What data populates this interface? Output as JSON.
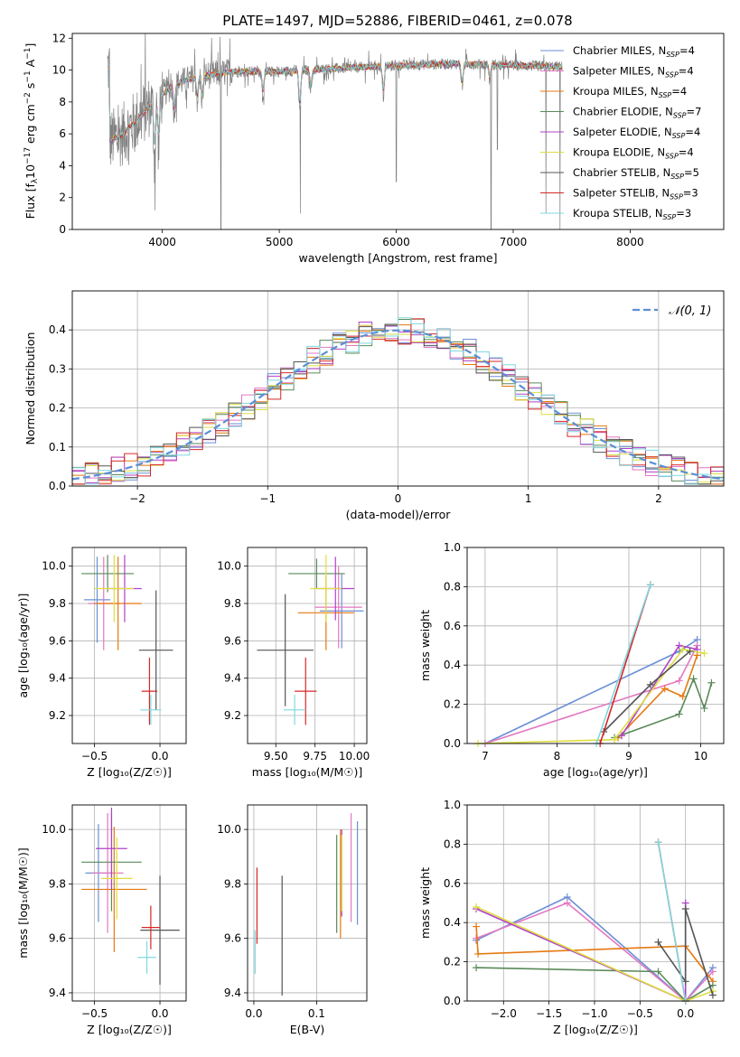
{
  "figure": {
    "title": "PLATE=1497, MJD=52886, FIBERID=0461, z=0.078"
  },
  "models": [
    {
      "name": "Chabrier MILES",
      "nssp": 4,
      "color": "#6b8fd6"
    },
    {
      "name": "Salpeter MILES",
      "nssp": 4,
      "color": "#e377c2"
    },
    {
      "name": "Kroupa MILES",
      "nssp": 4,
      "color": "#e6780f"
    },
    {
      "name": "Chabrier ELODIE",
      "nssp": 7,
      "color": "#5a8a5a"
    },
    {
      "name": "Salpeter ELODIE",
      "nssp": 4,
      "color": "#b042c8"
    },
    {
      "name": "Kroupa ELODIE",
      "nssp": 4,
      "color": "#dede40"
    },
    {
      "name": "Chabrier STELIB",
      "nssp": 5,
      "color": "#555555"
    },
    {
      "name": "Salpeter STELIB",
      "nssp": 3,
      "color": "#d62728"
    },
    {
      "name": "Kroupa STELIB",
      "nssp": 3,
      "color": "#7fd8e0"
    }
  ],
  "chart_data": [
    {
      "id": "spectrum",
      "type": "line",
      "xlabel": "wavelength [Angstrom, rest frame]",
      "ylabel_parts": [
        "Flux [f",
        "λ",
        "10",
        "−17",
        " erg cm",
        "−2",
        " s",
        "−1",
        " A",
        "−1",
        "]"
      ],
      "xlim": [
        3230,
        8800
      ],
      "ylim": [
        0,
        12.3
      ],
      "xticks": [
        4000,
        5000,
        6000,
        7000,
        8000
      ],
      "yticks": [
        0,
        2,
        4,
        6,
        8,
        10,
        12
      ],
      "data_color": "#808080",
      "continuum": [
        [
          3550,
          5.6
        ],
        [
          3650,
          5.9
        ],
        [
          3800,
          7.0
        ],
        [
          3950,
          8.2
        ],
        [
          4100,
          9.1
        ],
        [
          4300,
          9.6
        ],
        [
          4600,
          9.9
        ],
        [
          5000,
          9.9
        ],
        [
          5500,
          10.1
        ],
        [
          6000,
          10.3
        ],
        [
          6500,
          10.4
        ],
        [
          7000,
          10.3
        ],
        [
          7420,
          10.2
        ]
      ],
      "absorption_lines": [
        [
          3934,
          3.5
        ],
        [
          3969,
          3.0
        ],
        [
          4102,
          1.8
        ],
        [
          4300,
          1.5
        ],
        [
          4341,
          1.5
        ],
        [
          4861,
          1.5
        ],
        [
          5175,
          2.5
        ],
        [
          5270,
          1.2
        ],
        [
          5890,
          2.0
        ],
        [
          6563,
          1.5
        ],
        [
          6800,
          1.0
        ]
      ],
      "deep_dips": [
        [
          4500,
          0.0
        ],
        [
          5180,
          1.0
        ],
        [
          6000,
          3.0
        ],
        [
          6810,
          0.0
        ],
        [
          6865,
          5.0
        ],
        [
          7280,
          1.0
        ],
        [
          7400,
          0.0
        ]
      ]
    },
    {
      "id": "residual-histogram",
      "type": "bar",
      "xlabel": "(data-model)/error",
      "ylabel": "Normed distribution",
      "xlim": [
        -2.5,
        2.5
      ],
      "ylim": [
        0,
        0.5
      ],
      "xticks": [
        -2,
        -1,
        0,
        1,
        2
      ],
      "xtick_labels": [
        "−2",
        "−1",
        "0",
        "1",
        "2"
      ],
      "yticks": [
        0.0,
        0.1,
        0.2,
        0.3,
        0.4
      ],
      "ytick_labels": [
        "0.0",
        "0.1",
        "0.2",
        "0.3",
        "0.4"
      ],
      "bin_edges": [
        -2.5,
        2.5,
        50
      ],
      "legend": "𝒩(0, 1)",
      "legend_position": "top-right",
      "reference_curve": {
        "type": "normal",
        "mean": 0,
        "sigma": 1,
        "color": "#5b8fd6"
      }
    },
    {
      "id": "age-vs-metallicity",
      "type": "scatter",
      "xlabel": "Z [log₁₀(Z/Z☉)]",
      "ylabel": "age  [log₁₀(age/yr)]",
      "xlim": [
        -0.67,
        0.2
      ],
      "ylim": [
        9.05,
        10.1
      ],
      "xticks": [
        -0.5,
        0.0
      ],
      "xtick_labels": [
        "−0.5",
        "0.0"
      ],
      "yticks": [
        9.2,
        9.4,
        9.6,
        9.8,
        10.0
      ],
      "ytick_labels": [
        "9.2",
        "9.4",
        "9.6",
        "9.8",
        "10.0"
      ],
      "points": [
        {
          "x": -0.48,
          "xerr": 0.1,
          "y": 9.82,
          "yerr": 0.23,
          "m": 0
        },
        {
          "x": -0.43,
          "xerr": 0.12,
          "y": 9.8,
          "yerr": 0.25,
          "m": 1
        },
        {
          "x": -0.32,
          "xerr": 0.18,
          "y": 9.8,
          "yerr": 0.25,
          "m": 2
        },
        {
          "x": -0.4,
          "xerr": 0.2,
          "y": 9.96,
          "yerr": 0.1,
          "m": 3
        },
        {
          "x": -0.27,
          "xerr": 0.13,
          "y": 9.88,
          "yerr": 0.18,
          "m": 4
        },
        {
          "x": -0.35,
          "xerr": 0.15,
          "y": 9.88,
          "yerr": 0.18,
          "m": 5
        },
        {
          "x": -0.03,
          "xerr": 0.13,
          "y": 9.55,
          "yerr": 0.32,
          "m": 6
        },
        {
          "x": -0.08,
          "xerr": 0.06,
          "y": 9.33,
          "yerr": 0.18,
          "m": 7
        },
        {
          "x": -0.07,
          "xerr": 0.08,
          "y": 9.23,
          "yerr": 0.08,
          "m": 8
        }
      ]
    },
    {
      "id": "age-vs-mass",
      "type": "scatter",
      "xlabel": "mass [log₁₀(M/M☉)]",
      "ylabel": "",
      "xlim": [
        9.32,
        10.08
      ],
      "ylim": [
        9.05,
        10.1
      ],
      "xticks": [
        9.5,
        9.75,
        10.0
      ],
      "xtick_labels": [
        "9.50",
        "9.75",
        "10.00"
      ],
      "yticks": [
        9.2,
        9.4,
        9.6,
        9.8,
        10.0
      ],
      "ytick_labels": [
        "9.2",
        "9.4",
        "9.6",
        "9.8",
        "10.0"
      ],
      "points": [
        {
          "x": 9.92,
          "xerr": 0.14,
          "y": 9.76,
          "yerr": 0.2,
          "m": 0
        },
        {
          "x": 9.9,
          "xerr": 0.15,
          "y": 9.78,
          "yerr": 0.22,
          "m": 1
        },
        {
          "x": 9.82,
          "xerr": 0.18,
          "y": 9.75,
          "yerr": 0.2,
          "m": 2
        },
        {
          "x": 9.76,
          "xerr": 0.18,
          "y": 9.96,
          "yerr": 0.08,
          "m": 3
        },
        {
          "x": 9.88,
          "xerr": 0.12,
          "y": 9.88,
          "yerr": 0.17,
          "m": 4
        },
        {
          "x": 9.82,
          "xerr": 0.1,
          "y": 9.88,
          "yerr": 0.18,
          "m": 5
        },
        {
          "x": 9.56,
          "xerr": 0.18,
          "y": 9.55,
          "yerr": 0.3,
          "m": 6
        },
        {
          "x": 9.69,
          "xerr": 0.07,
          "y": 9.33,
          "yerr": 0.18,
          "m": 7
        },
        {
          "x": 9.62,
          "xerr": 0.07,
          "y": 9.23,
          "yerr": 0.08,
          "m": 8
        }
      ]
    },
    {
      "id": "mass-weight-vs-age",
      "type": "line",
      "xlabel": "age  [log₁₀(age/yr)]",
      "ylabel": "mass weight",
      "xlim": [
        6.75,
        10.32
      ],
      "ylim": [
        0.0,
        1.0
      ],
      "xticks": [
        7,
        8,
        9,
        10
      ],
      "xtick_labels": [
        "7",
        "8",
        "9",
        "10"
      ],
      "yticks": [
        0.0,
        0.2,
        0.4,
        0.6,
        0.8,
        1.0
      ],
      "ytick_labels": [
        "0.0",
        "0.2",
        "0.4",
        "0.6",
        "0.8",
        "1.0"
      ],
      "series": [
        {
          "m": 0,
          "x": [
            7.0,
            9.7,
            9.95
          ],
          "y": [
            0.0,
            0.47,
            0.53
          ]
        },
        {
          "m": 1,
          "x": [
            7.0,
            9.7,
            9.95
          ],
          "y": [
            0.0,
            0.32,
            0.5
          ]
        },
        {
          "m": 2,
          "x": [
            8.85,
            9.5,
            9.75,
            9.95
          ],
          "y": [
            0.03,
            0.28,
            0.24,
            0.45
          ]
        },
        {
          "m": 3,
          "x": [
            8.8,
            9.7,
            9.9,
            10.05,
            10.15
          ],
          "y": [
            0.03,
            0.15,
            0.33,
            0.18,
            0.31
          ]
        },
        {
          "m": 4,
          "x": [
            8.9,
            9.7,
            9.95
          ],
          "y": [
            0.04,
            0.5,
            0.48
          ]
        },
        {
          "m": 5,
          "x": [
            6.9,
            8.8,
            9.75,
            10.05
          ],
          "y": [
            0.0,
            0.02,
            0.48,
            0.46
          ]
        },
        {
          "m": 6,
          "x": [
            8.65,
            9.3,
            9.85
          ],
          "y": [
            0.06,
            0.3,
            0.47
          ]
        },
        {
          "m": 7,
          "x": [
            8.6,
            9.3
          ],
          "y": [
            0.0,
            0.81
          ]
        },
        {
          "m": 8,
          "x": [
            8.55,
            9.3
          ],
          "y": [
            0.0,
            0.81
          ]
        }
      ]
    },
    {
      "id": "mass-vs-metallicity",
      "type": "scatter",
      "xlabel": "Z [log₁₀(Z/Z☉)]",
      "ylabel": "mass [log₁₀(M/M☉)]",
      "xlim": [
        -0.67,
        0.2
      ],
      "ylim": [
        9.37,
        10.09
      ],
      "xticks": [
        -0.5,
        0.0
      ],
      "xtick_labels": [
        "−0.5",
        "0.0"
      ],
      "yticks": [
        9.4,
        9.6,
        9.8,
        10.0
      ],
      "ytick_labels": [
        "9.4",
        "9.6",
        "9.8",
        "10.0"
      ],
      "points": [
        {
          "x": -0.47,
          "xerr": 0.1,
          "y": 9.84,
          "yerr": 0.18,
          "m": 0
        },
        {
          "x": -0.4,
          "xerr": 0.12,
          "y": 9.84,
          "yerr": 0.22,
          "m": 1
        },
        {
          "x": -0.35,
          "xerr": 0.25,
          "y": 9.78,
          "yerr": 0.23,
          "m": 2
        },
        {
          "x": -0.37,
          "xerr": 0.23,
          "y": 9.88,
          "yerr": 0.18,
          "m": 3
        },
        {
          "x": -0.37,
          "xerr": 0.12,
          "y": 9.93,
          "yerr": 0.15,
          "m": 4
        },
        {
          "x": -0.33,
          "xerr": 0.12,
          "y": 9.82,
          "yerr": 0.15,
          "m": 5
        },
        {
          "x": 0.0,
          "xerr": 0.15,
          "y": 9.63,
          "yerr": 0.2,
          "m": 6
        },
        {
          "x": -0.07,
          "xerr": 0.07,
          "y": 9.64,
          "yerr": 0.08,
          "m": 7
        },
        {
          "x": -0.1,
          "xerr": 0.07,
          "y": 9.53,
          "yerr": 0.06,
          "m": 8
        }
      ]
    },
    {
      "id": "mass-vs-extinction",
      "type": "scatter",
      "xlabel": "E(B-V)",
      "ylabel": "",
      "xlim": [
        -0.01,
        0.18
      ],
      "ylim": [
        9.37,
        10.09
      ],
      "xticks": [
        0.0,
        0.1
      ],
      "xtick_labels": [
        "0.0",
        "0.1"
      ],
      "yticks": [
        9.4,
        9.6,
        9.8,
        10.0
      ],
      "ytick_labels": [
        "9.4",
        "9.6",
        "9.8",
        "10.0"
      ],
      "points": [
        {
          "x": 0.165,
          "y": 9.84,
          "yerr": 0.19,
          "m": 0
        },
        {
          "x": 0.155,
          "y": 9.86,
          "yerr": 0.2,
          "m": 1
        },
        {
          "x": 0.138,
          "y": 9.8,
          "yerr": 0.2,
          "m": 2
        },
        {
          "x": 0.132,
          "y": 9.8,
          "yerr": 0.18,
          "m": 3
        },
        {
          "x": 0.14,
          "y": 9.84,
          "yerr": 0.16,
          "m": 4
        },
        {
          "x": 0.14,
          "y": 9.84,
          "yerr": 0.14,
          "m": 5
        },
        {
          "x": 0.045,
          "y": 9.61,
          "yerr": 0.22,
          "m": 6
        },
        {
          "x": 0.005,
          "y": 9.72,
          "yerr": 0.14,
          "m": 7
        },
        {
          "x": 0.002,
          "y": 9.55,
          "yerr": 0.08,
          "m": 8
        }
      ]
    },
    {
      "id": "mass-weight-vs-metallicity",
      "type": "line",
      "xlabel": "Z [log₁₀(Z/Z☉)]",
      "ylabel": "mass weight",
      "xlim": [
        -2.4,
        0.42
      ],
      "ylim": [
        0.0,
        1.0
      ],
      "xticks": [
        -2.0,
        -1.5,
        -1.0,
        -0.5,
        0.0
      ],
      "xtick_labels": [
        "−2.0",
        "−1.5",
        "−1.0",
        "−0.5",
        "0.0"
      ],
      "yticks": [
        0.0,
        0.2,
        0.4,
        0.6,
        0.8,
        1.0
      ],
      "ytick_labels": [
        "0.0",
        "0.2",
        "0.4",
        "0.6",
        "0.8",
        "1.0"
      ],
      "series": [
        {
          "m": 0,
          "x": [
            -2.3,
            -1.3,
            0.0,
            0.3
          ],
          "y": [
            0.31,
            0.53,
            0.0,
            0.17
          ]
        },
        {
          "m": 1,
          "x": [
            -2.3,
            -1.3,
            0.0,
            0.3
          ],
          "y": [
            0.32,
            0.5,
            0.0,
            0.15
          ]
        },
        {
          "m": 2,
          "x": [
            -2.3,
            -2.28,
            0.0,
            0.3
          ],
          "y": [
            0.38,
            0.24,
            0.28,
            0.1
          ]
        },
        {
          "m": 3,
          "x": [
            -2.3,
            -0.3,
            0.0,
            0.3
          ],
          "y": [
            0.17,
            0.15,
            0.0,
            0.08
          ]
        },
        {
          "m": 4,
          "x": [
            -2.3,
            0.0,
            0.0
          ],
          "y": [
            0.47,
            0.0,
            0.5
          ]
        },
        {
          "m": 5,
          "x": [
            -2.3,
            0.0,
            0.3
          ],
          "y": [
            0.48,
            0.0,
            0.05
          ]
        },
        {
          "m": 6,
          "x": [
            -0.3,
            0.0,
            0.0,
            0.3
          ],
          "y": [
            0.3,
            0.1,
            0.47,
            0.03
          ]
        },
        {
          "m": 7,
          "x": [
            -0.3,
            0.0
          ],
          "y": [
            0.81,
            0.0
          ]
        },
        {
          "m": 8,
          "x": [
            -0.3,
            0.0
          ],
          "y": [
            0.81,
            0.0
          ]
        }
      ]
    }
  ]
}
